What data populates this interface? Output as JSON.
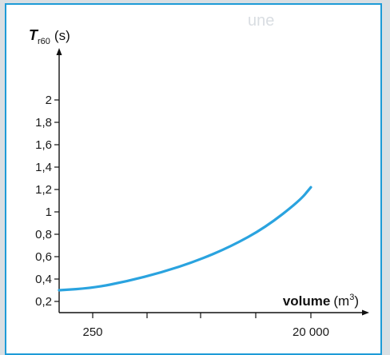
{
  "chart_data": {
    "type": "line",
    "y_axis": {
      "symbol": "T",
      "subscript": "r60",
      "unit": "(s)",
      "ticks": [
        0.2,
        0.4,
        0.6,
        0.8,
        1,
        1.2,
        1.4,
        1.6,
        1.8,
        2
      ],
      "tick_labels": [
        "0,2",
        "0,4",
        "0,6",
        "0,8",
        "1",
        "1,2",
        "1,4",
        "1,6",
        "1,8",
        "2"
      ],
      "range": [
        0.1,
        2.2
      ]
    },
    "x_axis": {
      "label": "volume",
      "unit_base": "(m",
      "unit_sup": "3",
      "unit_close": ")",
      "tick_labels": [
        "250",
        "20 000"
      ],
      "scale": "log",
      "range": [
        125,
        40000
      ]
    },
    "series": [
      {
        "color": "#2aa3df",
        "points": [
          [
            250,
            0.32
          ],
          [
            500,
            0.38
          ],
          [
            1000,
            0.46
          ],
          [
            2000,
            0.56
          ],
          [
            4000,
            0.69
          ],
          [
            8000,
            0.86
          ],
          [
            16000,
            1.1
          ],
          [
            20000,
            1.22
          ]
        ]
      }
    ],
    "grid": false,
    "legend": "none"
  },
  "bleed_text": "une"
}
